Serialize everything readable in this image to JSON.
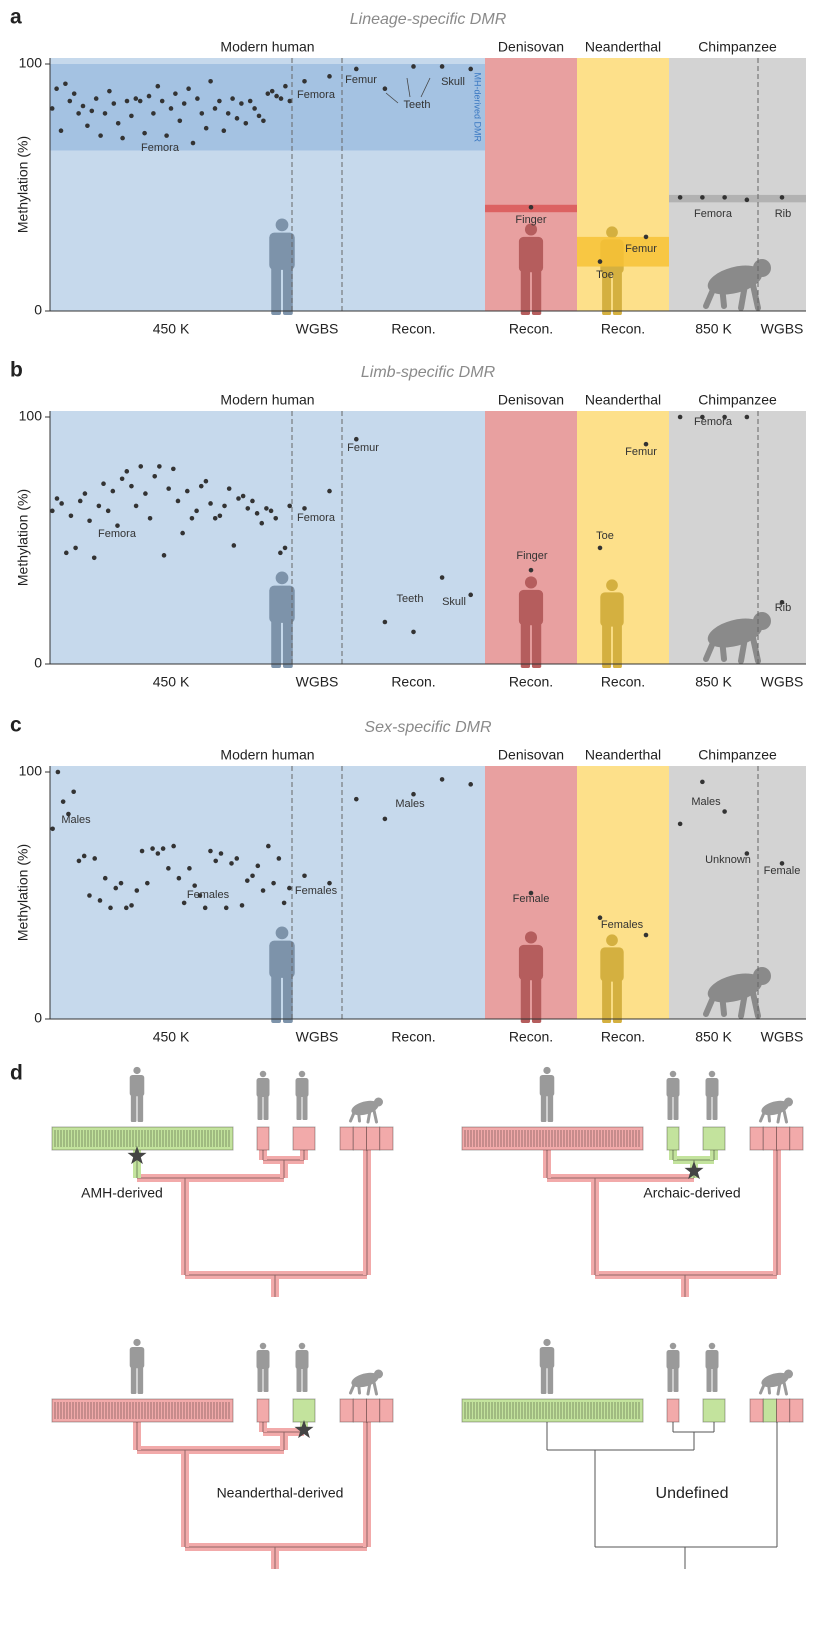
{
  "chart_data": [
    {
      "type": "scatter",
      "panel": "a",
      "title": "Lineage-specific DMR",
      "ylabel": "Methylation (%)",
      "ylim": [
        0,
        100
      ],
      "yticks": [
        0,
        100
      ],
      "point_color": "#333333",
      "groups": [
        {
          "name": "Modern human",
          "color": "#c6d9ec",
          "band": [
            65,
            100
          ],
          "band_color": "#9dbde0",
          "band_label": "MH-derived DMR",
          "sections": [
            {
              "label": "450 K",
              "values": [
                82,
                90,
                73,
                92,
                85,
                88,
                80,
                83,
                75,
                81,
                86,
                71,
                80,
                89,
                84,
                76,
                70,
                85,
                79,
                86,
                85,
                72,
                87,
                80,
                91,
                85,
                71,
                82,
                88,
                77,
                84,
                90,
                68,
                86,
                80,
                74,
                93,
                82,
                85,
                73,
                80,
                86,
                78,
                84,
                76,
                85,
                82,
                79,
                77,
                88,
                89,
                87,
                86,
                91,
                85
              ],
              "annotations": [
                "Femora"
              ]
            },
            {
              "label": "WGBS",
              "values": [
                93,
                95
              ],
              "annotations": [
                "Femora"
              ]
            },
            {
              "label": "Recon.",
              "values": [
                98,
                90,
                99,
                99,
                98
              ],
              "annotations": [
                "Femur",
                "Teeth",
                "Skull"
              ]
            }
          ]
        },
        {
          "name": "Denisovan",
          "color": "#e8a0a0",
          "band": [
            40,
            43
          ],
          "band_color": "#d95757",
          "sections": [
            {
              "label": "Recon.",
              "values": [
                42
              ],
              "annotations": [
                "Finger"
              ]
            }
          ]
        },
        {
          "name": "Neanderthal",
          "color": "#fde08a",
          "band": [
            18,
            30
          ],
          "band_color": "#f7c236",
          "sections": [
            {
              "label": "Recon.",
              "values": [
                20,
                30
              ],
              "annotations": [
                "Toe",
                "Femur"
              ]
            }
          ]
        },
        {
          "name": "Chimpanzee",
          "color": "#d3d3d3",
          "band": [
            44,
            47
          ],
          "band_color": "#ababab",
          "sections": [
            {
              "label": "850 K",
              "values": [
                46,
                46,
                46,
                45
              ],
              "annotations": [
                "Femora"
              ]
            },
            {
              "label": "WGBS",
              "values": [
                46
              ],
              "annotations": [
                "Rib"
              ]
            }
          ]
        }
      ]
    },
    {
      "type": "scatter",
      "panel": "b",
      "title": "Limb-specific DMR",
      "ylabel": "Methylation (%)",
      "ylim": [
        0,
        100
      ],
      "yticks": [
        0,
        100
      ],
      "point_color": "#333333",
      "groups": [
        {
          "name": "Modern human",
          "color": "#c6d9ec",
          "sections": [
            {
              "label": "450 K",
              "values": [
                62,
                67,
                65,
                45,
                60,
                47,
                66,
                69,
                58,
                43,
                64,
                73,
                62,
                70,
                56,
                75,
                78,
                72,
                64,
                80,
                69,
                59,
                76,
                80,
                44,
                71,
                79,
                66,
                53,
                70,
                59,
                62,
                72,
                74,
                65,
                59,
                60,
                64,
                71,
                48,
                67,
                68,
                63,
                66,
                61,
                57,
                63,
                62,
                59,
                45,
                47,
                64
              ],
              "annotations": [
                "Femora"
              ]
            },
            {
              "label": "WGBS",
              "values": [
                63,
                70
              ],
              "annotations": [
                "Femora"
              ]
            },
            {
              "label": "Recon.",
              "values": [
                91,
                17,
                13,
                35,
                28
              ],
              "annotations": [
                "Femur",
                "Teeth",
                "Skull"
              ]
            }
          ]
        },
        {
          "name": "Denisovan",
          "color": "#e8a0a0",
          "sections": [
            {
              "label": "Recon.",
              "values": [
                38
              ],
              "annotations": [
                "Finger"
              ]
            }
          ]
        },
        {
          "name": "Neanderthal",
          "color": "#fde08a",
          "sections": [
            {
              "label": "Recon.",
              "values": [
                47,
                89
              ],
              "annotations": [
                "Toe",
                "Femur"
              ]
            }
          ]
        },
        {
          "name": "Chimpanzee",
          "color": "#d3d3d3",
          "sections": [
            {
              "label": "850 K",
              "values": [
                100,
                100,
                100,
                100
              ],
              "annotations": [
                "Femora"
              ]
            },
            {
              "label": "WGBS",
              "values": [
                25
              ],
              "annotations": [
                "Rib"
              ]
            }
          ]
        }
      ]
    },
    {
      "type": "scatter",
      "panel": "c",
      "title": "Sex-specific DMR",
      "ylabel": "Methylation (%)",
      "ylim": [
        0,
        100
      ],
      "yticks": [
        0,
        100
      ],
      "point_color": "#333333",
      "groups": [
        {
          "name": "Modern human",
          "color": "#c6d9ec",
          "sections": [
            {
              "label": "450 K",
              "values": [
                77,
                100,
                88,
                83,
                92,
                64,
                66,
                50,
                65,
                48,
                57,
                45,
                53,
                55,
                45,
                46,
                52,
                68,
                55,
                69,
                67,
                69,
                61,
                70,
                57,
                47,
                61,
                54,
                50,
                45,
                68,
                64,
                67,
                45,
                63,
                65,
                46,
                56,
                58,
                62,
                52,
                70,
                55,
                65,
                47,
                53
              ],
              "annotations": [
                "Males",
                "Females"
              ]
            },
            {
              "label": "WGBS",
              "values": [
                58,
                55
              ],
              "annotations": [
                "Females"
              ]
            },
            {
              "label": "Recon.",
              "values": [
                89,
                81,
                91,
                97,
                95
              ],
              "annotations": [
                "Males"
              ]
            }
          ]
        },
        {
          "name": "Denisovan",
          "color": "#e8a0a0",
          "sections": [
            {
              "label": "Recon.",
              "values": [
                51
              ],
              "annotations": [
                "Female"
              ]
            }
          ]
        },
        {
          "name": "Neanderthal",
          "color": "#fde08a",
          "sections": [
            {
              "label": "Recon.",
              "values": [
                41,
                34
              ],
              "annotations": [
                "Females"
              ]
            }
          ]
        },
        {
          "name": "Chimpanzee",
          "color": "#d3d3d3",
          "sections": [
            {
              "label": "850 K",
              "values": [
                79,
                96,
                84,
                67
              ],
              "annotations": [
                "Males",
                "Unknown"
              ]
            },
            {
              "label": "WGBS",
              "values": [
                63
              ],
              "annotations": [
                "Female"
              ]
            }
          ]
        }
      ]
    }
  ],
  "panel_d": {
    "panel": "d",
    "trees": [
      {
        "label": "AMH-derived",
        "style": "pipe",
        "leaf_colors": [
          "#c3e39d",
          "#f2aaaa",
          "#f2aaaa"
        ],
        "chimp_cells": [
          "#f2aaaa",
          "#f2aaaa",
          "#f2aaaa",
          "#f2aaaa"
        ],
        "edge_colors": [
          "#c3e39d",
          "#f2aaaa",
          "#f2aaaa",
          "#f2aaaa",
          "#f2aaaa",
          "#f2aaaa",
          "#f2aaaa"
        ]
      },
      {
        "label": "Archaic-derived",
        "style": "pipe",
        "leaf_colors": [
          "#f2aaaa",
          "#c3e39d",
          "#c3e39d"
        ],
        "chimp_cells": [
          "#f2aaaa",
          "#f2aaaa",
          "#f2aaaa",
          "#f2aaaa"
        ],
        "edge_colors": [
          "#f2aaaa",
          "#c3e39d",
          "#c3e39d",
          "#f2aaaa",
          "#c3e39d",
          "#f2aaaa",
          "#f2aaaa"
        ]
      },
      {
        "label": "Neanderthal-derived",
        "style": "pipe",
        "leaf_colors": [
          "#f2aaaa",
          "#f2aaaa",
          "#c3e39d"
        ],
        "chimp_cells": [
          "#f2aaaa",
          "#f2aaaa",
          "#f2aaaa",
          "#f2aaaa"
        ],
        "edge_colors": [
          "#f2aaaa",
          "#f2aaaa",
          "#c3e39d",
          "#f2aaaa",
          "#f2aaaa",
          "#f2aaaa",
          "#f2aaaa"
        ]
      },
      {
        "label": "Undefined",
        "style": "line",
        "leaf_colors": [
          "#c3e39d",
          "#f2aaaa",
          "#c3e39d"
        ],
        "chimp_cells": [
          "#f2aaaa",
          "#c3e39d",
          "#f2aaaa",
          "#f2aaaa"
        ],
        "edge_colors": [
          "#555555",
          "#555555",
          "#555555",
          "#555555",
          "#555555",
          "#555555",
          "#555555"
        ]
      }
    ]
  }
}
